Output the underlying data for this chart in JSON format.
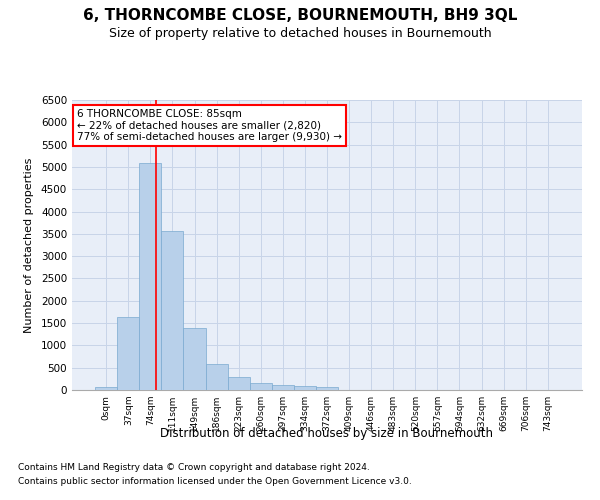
{
  "title": "6, THORNCOMBE CLOSE, BOURNEMOUTH, BH9 3QL",
  "subtitle": "Size of property relative to detached houses in Bournemouth",
  "xlabel": "Distribution of detached houses by size in Bournemouth",
  "ylabel": "Number of detached properties",
  "footnote1": "Contains HM Land Registry data © Crown copyright and database right 2024.",
  "footnote2": "Contains public sector information licensed under the Open Government Licence v3.0.",
  "bar_labels": [
    "0sqm",
    "37sqm",
    "74sqm",
    "111sqm",
    "149sqm",
    "186sqm",
    "223sqm",
    "260sqm",
    "297sqm",
    "334sqm",
    "372sqm",
    "409sqm",
    "446sqm",
    "483sqm",
    "520sqm",
    "557sqm",
    "594sqm",
    "632sqm",
    "669sqm",
    "706sqm",
    "743sqm"
  ],
  "bar_values": [
    70,
    1630,
    5080,
    3570,
    1400,
    590,
    290,
    150,
    110,
    80,
    65,
    0,
    0,
    0,
    0,
    0,
    0,
    0,
    0,
    0,
    0
  ],
  "bar_color": "#b8d0ea",
  "bar_edge_color": "#7aaad0",
  "grid_color": "#c8d4e8",
  "background_color": "#e8eef8",
  "vline_x": 2.27,
  "annotation_line1": "6 THORNCOMBE CLOSE: 85sqm",
  "annotation_line2": "← 22% of detached houses are smaller (2,820)",
  "annotation_line3": "77% of semi-detached houses are larger (9,930) →",
  "annotation_box_color": "white",
  "annotation_box_edge": "red",
  "ylim": [
    0,
    6500
  ],
  "yticks": [
    0,
    500,
    1000,
    1500,
    2000,
    2500,
    3000,
    3500,
    4000,
    4500,
    5000,
    5500,
    6000,
    6500
  ],
  "title_fontsize": 11,
  "subtitle_fontsize": 9
}
